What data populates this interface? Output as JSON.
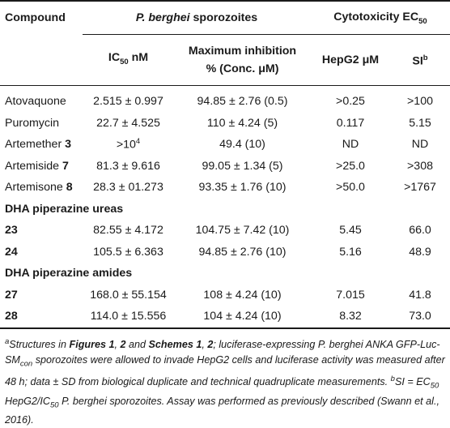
{
  "header": {
    "col1": "Compound",
    "group_sporozoites": "P. berghei",
    "group_sporozoites_suffix": "sporozoites",
    "group_cyto": "Cytotoxicity EC",
    "group_cyto_sub": "50",
    "ic50_label": "IC",
    "ic50_sub": "50",
    "ic50_unit": " nM",
    "maxinh_line1": "Maximum inhibition",
    "maxinh_line2": "% (Conc. μM)",
    "hepg2": "HepG2 μM",
    "si_label": "SI",
    "si_sup": "b"
  },
  "rows": [
    {
      "name": "Atovaquone",
      "bold": "",
      "ic50": "2.515 ± 0.997",
      "maxinh": "94.85 ± 2.76 (0.5)",
      "hepg2": ">0.25",
      "si": ">100"
    },
    {
      "name": "Puromycin",
      "bold": "",
      "ic50": "22.7 ± 4.525",
      "maxinh": "110 ± 4.24 (5)",
      "hepg2": "0.117",
      "si": "5.15"
    },
    {
      "name": "Artemether ",
      "bold": "3",
      "ic50_base": ">10",
      "ic50_sup": "4",
      "maxinh": "49.4 (10)",
      "hepg2": "ND",
      "si": "ND"
    },
    {
      "name": "Artemiside ",
      "bold": "7",
      "ic50": "81.3 ± 9.616",
      "maxinh": "99.05 ± 1.34 (5)",
      "hepg2": ">25.0",
      "si": ">308"
    },
    {
      "name": "Artemisone ",
      "bold": "8",
      "ic50": "28.3 ± 01.273",
      "maxinh": "93.35 ± 1.76 (10)",
      "hepg2": ">50.0",
      "si": ">1767"
    }
  ],
  "section_ureas": "DHA piperazine ureas",
  "ureas": [
    {
      "name": "23",
      "ic50": "82.55 ± 4.172",
      "maxinh": "104.75 ± 7.42 (10)",
      "hepg2": "5.45",
      "si": "66.0"
    },
    {
      "name": "24",
      "ic50": "105.5 ± 6.363",
      "maxinh": "94.85 ± 2.76 (10)",
      "hepg2": "5.16",
      "si": "48.9"
    }
  ],
  "section_amides": "DHA piperazine amides",
  "amides": [
    {
      "name": "27",
      "ic50": "168.0 ± 55.154",
      "maxinh": "108 ± 4.24 (10)",
      "hepg2": "7.015",
      "si": "41.8"
    },
    {
      "name": "28",
      "ic50": "114.0 ± 15.556",
      "maxinh": "104 ± 4.24 (10)",
      "hepg2": "8.32",
      "si": "73.0"
    }
  ],
  "footnote": {
    "a_sup": "a",
    "a_1": "Structures in ",
    "a_fig": "Figures 1",
    "a_2": ", ",
    "a_2b": "2",
    "a_3": " and ",
    "a_schemes": "Schemes 1",
    "a_4": ", ",
    "a_4b": "2",
    "a_5": "; luciferase-expressing P. berghei ANKA GFP-Luc-SM",
    "a_con": "con",
    "a_6": " sporozoites were allowed to invade HepG2 cells and luciferase activity was measured after 48 h; data ± SD from biological duplicate and technical quadruplicate measurements. ",
    "b_sup": "b",
    "b_1": "SI = EC",
    "b_sub1": "50",
    "b_2": " HepG2/IC",
    "b_sub2": "50",
    "b_3": " P. berghei sporozoites. Assay was performed as previously described (Swann et al., 2016)."
  }
}
